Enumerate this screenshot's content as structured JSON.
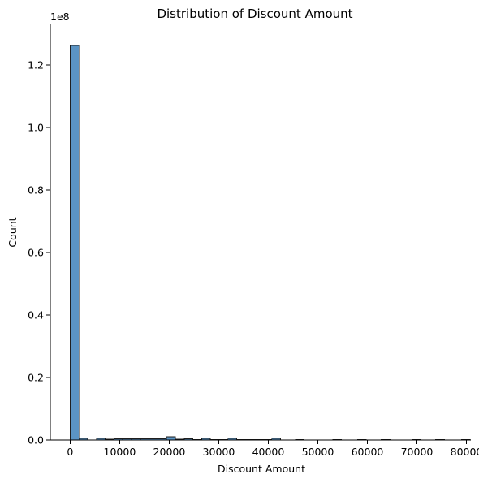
{
  "chart_data": {
    "type": "bar",
    "title": "Distribution of Discount Amount",
    "xlabel": "Discount Amount",
    "ylabel": "Count",
    "y_offset_text": "1e8",
    "xlim": [
      -4000,
      80900
    ],
    "ylim": [
      0,
      1.33
    ],
    "x_ticks": [
      0,
      10000,
      20000,
      30000,
      40000,
      50000,
      60000,
      70000,
      80000
    ],
    "x_tick_labels": [
      "0",
      "10000",
      "20000",
      "30000",
      "40000",
      "50000",
      "60000",
      "70000",
      "80000"
    ],
    "y_ticks": [
      0,
      0.2,
      0.4,
      0.6,
      0.8,
      1.0,
      1.2
    ],
    "y_tick_labels": [
      "0.0",
      "0.2",
      "0.4",
      "0.6",
      "0.8",
      "1.0",
      "1.2"
    ],
    "y_units": "1e8",
    "grid": false,
    "bins": [
      {
        "x0": 0,
        "x1": 1770,
        "value": 1.262
      },
      {
        "x0": 1770,
        "x1": 3540,
        "value": 0.005
      },
      {
        "x0": 5310,
        "x1": 7080,
        "value": 0.005
      },
      {
        "x0": 7080,
        "x1": 8850,
        "value": 0.003
      },
      {
        "x0": 8850,
        "x1": 10620,
        "value": 0.004
      },
      {
        "x0": 10620,
        "x1": 12390,
        "value": 0.004
      },
      {
        "x0": 12390,
        "x1": 14160,
        "value": 0.004
      },
      {
        "x0": 14160,
        "x1": 15930,
        "value": 0.004
      },
      {
        "x0": 15930,
        "x1": 17700,
        "value": 0.004
      },
      {
        "x0": 17700,
        "x1": 19470,
        "value": 0.004
      },
      {
        "x0": 19470,
        "x1": 21240,
        "value": 0.01
      },
      {
        "x0": 21240,
        "x1": 23010,
        "value": 0.003
      },
      {
        "x0": 23010,
        "x1": 24780,
        "value": 0.004
      },
      {
        "x0": 24780,
        "x1": 26550,
        "value": 0.002
      },
      {
        "x0": 26550,
        "x1": 28320,
        "value": 0.005
      },
      {
        "x0": 28320,
        "x1": 30090,
        "value": 0.002
      },
      {
        "x0": 30090,
        "x1": 31860,
        "value": 0.002
      },
      {
        "x0": 31860,
        "x1": 33630,
        "value": 0.005
      },
      {
        "x0": 33630,
        "x1": 35400,
        "value": 0.002
      },
      {
        "x0": 35400,
        "x1": 37170,
        "value": 0.002
      },
      {
        "x0": 37170,
        "x1": 38940,
        "value": 0.002
      },
      {
        "x0": 38940,
        "x1": 40710,
        "value": 0.002
      },
      {
        "x0": 40710,
        "x1": 42480,
        "value": 0.005
      },
      {
        "x0": 45460,
        "x1": 47230,
        "value": 0.002
      },
      {
        "x0": 53000,
        "x1": 54770,
        "value": 0.002
      },
      {
        "x0": 58000,
        "x1": 59770,
        "value": 0.002
      },
      {
        "x0": 62800,
        "x1": 64570,
        "value": 0.002
      },
      {
        "x0": 69000,
        "x1": 70770,
        "value": 0.002
      },
      {
        "x0": 73800,
        "x1": 75570,
        "value": 0.002
      },
      {
        "x0": 79000,
        "x1": 80770,
        "value": 0.002
      }
    ]
  }
}
